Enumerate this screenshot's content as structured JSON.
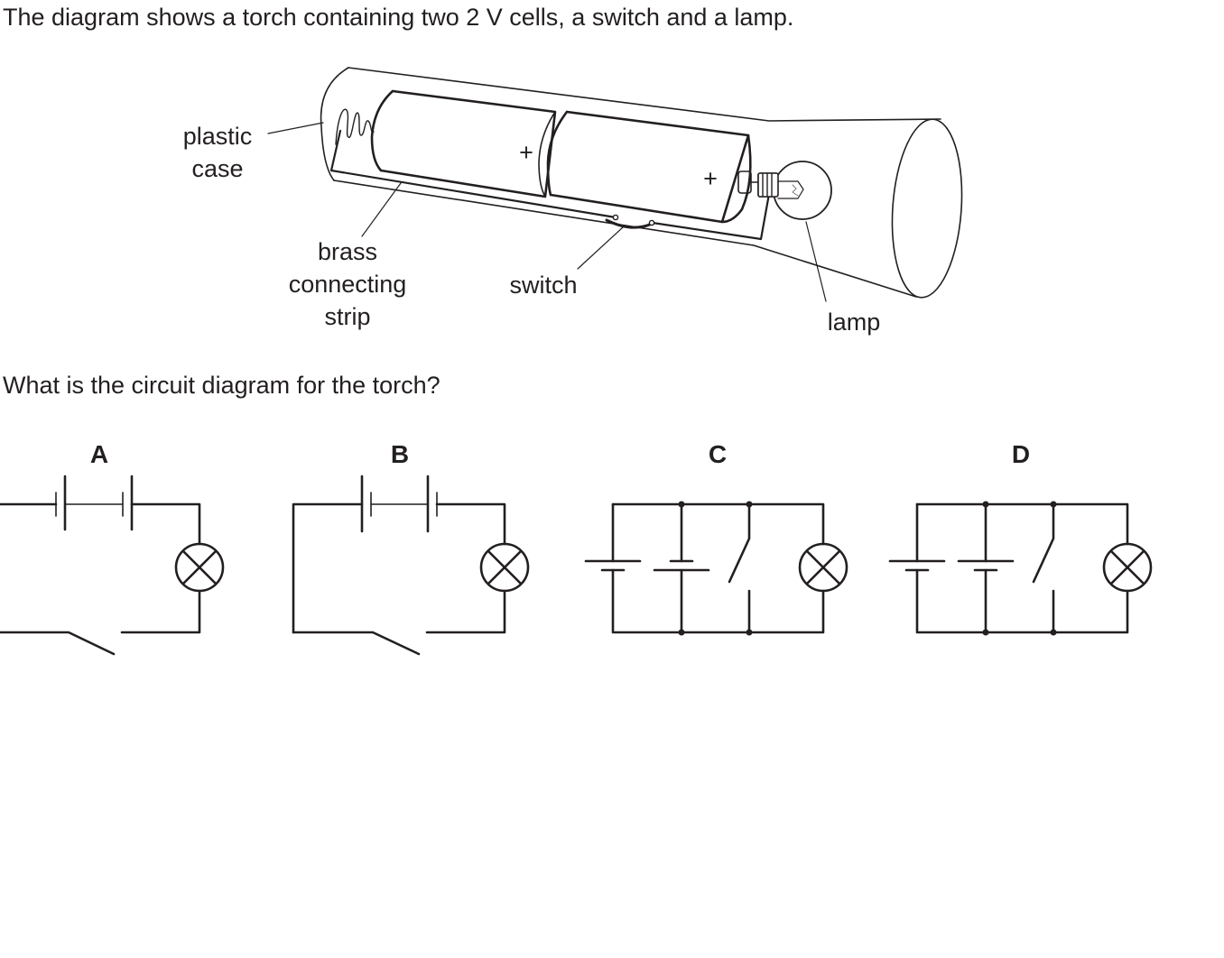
{
  "question": {
    "intro": "The diagram shows a torch containing two 2 V cells, a switch and a lamp.",
    "prompt": "What is the circuit diagram for the torch?"
  },
  "torch_diagram": {
    "labels": {
      "plastic_case_line1": "plastic",
      "plastic_case_line2": "case",
      "brass_line1": "brass",
      "brass_line2": "connecting",
      "brass_line3": "strip",
      "switch": "switch",
      "lamp": "lamp",
      "plus_cell1": "+",
      "plus_cell2": "+"
    }
  },
  "options": {
    "a": "A",
    "b": "B",
    "c": "C",
    "d": "D"
  },
  "colors": {
    "ink": "#231f20"
  }
}
